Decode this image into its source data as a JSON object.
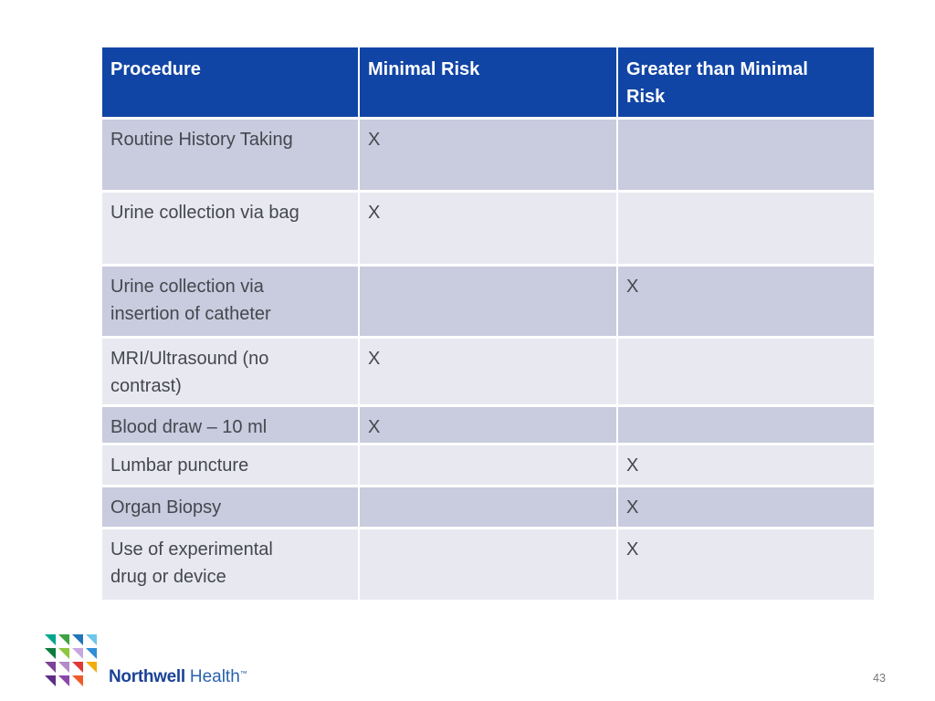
{
  "colors": {
    "header_bg": "#1145A5",
    "header_text": "#FFFFFF",
    "row_dark": "#C9CBDE",
    "row_light": "#E8E9F0",
    "body_text": "#45474F",
    "wordmark_blue": "#1B4297",
    "health_blue": "#2A62AE",
    "page_number_text": "#7A7A7A"
  },
  "table": {
    "headers": [
      "Procedure",
      "Minimal Risk",
      "Greater than Minimal\nRisk"
    ],
    "rows": [
      {
        "procedure": "Routine History Taking",
        "minimal_risk": "X",
        "greater_risk": ""
      },
      {
        "procedure": "Urine collection via bag",
        "minimal_risk": "X",
        "greater_risk": ""
      },
      {
        "procedure": "Urine collection via\ninsertion of catheter",
        "minimal_risk": "",
        "greater_risk": "X"
      },
      {
        "procedure": "MRI/Ultrasound (no\ncontrast)",
        "minimal_risk": "X",
        "greater_risk": ""
      },
      {
        "procedure": "Blood draw – 10 ml",
        "minimal_risk": "X",
        "greater_risk": ""
      },
      {
        "procedure": "Lumbar puncture",
        "minimal_risk": "",
        "greater_risk": "X"
      },
      {
        "procedure": "Organ Biopsy",
        "minimal_risk": "",
        "greater_risk": "X"
      },
      {
        "procedure": "Use of experimental\ndrug or device",
        "minimal_risk": "",
        "greater_risk": "X"
      }
    ]
  },
  "logo": {
    "brand_bold": "Northwell",
    "brand_regular": "Health",
    "trademark": "™",
    "triangle_colors": [
      "#00A78B",
      "#3FA142",
      "#2274BB",
      "#6EC6E8",
      "#0E7C3F",
      "#8DC63F",
      "#C7A7DF",
      "#2E8FD5",
      "#7C4399",
      "#B18CC6",
      "#DE3B36",
      "#F3AC0E",
      "#5B2D87",
      "#8B48A8",
      "#EF5B28",
      ""
    ]
  },
  "slide": {
    "page_number": "43"
  }
}
